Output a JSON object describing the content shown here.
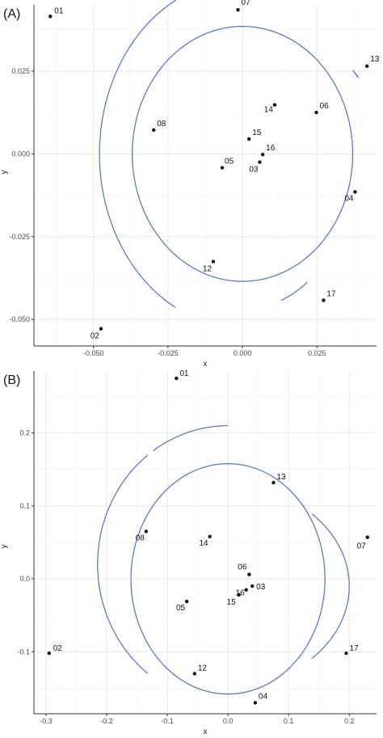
{
  "chart_data": [
    {
      "type": "scatter",
      "panel_label": "(A)",
      "xlabel": "x",
      "ylabel": "y",
      "xlim": [
        -0.07,
        0.045
      ],
      "ylim": [
        -0.058,
        0.045
      ],
      "xticks": [
        -0.05,
        -0.025,
        0.0,
        0.025
      ],
      "xtick_labels": [
        "-0.050",
        "-0.025",
        "0.000",
        "0.025"
      ],
      "yticks": [
        -0.05,
        -0.025,
        0.0,
        0.025
      ],
      "ytick_labels": [
        "-0.050",
        "-0.025",
        "0.000",
        "0.025"
      ],
      "grid": true,
      "points": [
        {
          "label": "01",
          "x": -0.0645,
          "y": 0.0415
        },
        {
          "label": "07",
          "x": -0.0015,
          "y": 0.0435
        },
        {
          "label": "13",
          "x": 0.0418,
          "y": 0.0265
        },
        {
          "label": "14",
          "x": 0.0108,
          "y": 0.0148
        },
        {
          "label": "06",
          "x": 0.0248,
          "y": 0.0125
        },
        {
          "label": "08",
          "x": -0.0298,
          "y": 0.0072
        },
        {
          "label": "15",
          "x": 0.0022,
          "y": 0.0045
        },
        {
          "label": "16",
          "x": 0.0068,
          "y": -0.0002
        },
        {
          "label": "05",
          "x": -0.0068,
          "y": -0.0042
        },
        {
          "label": "03",
          "x": 0.0058,
          "y": -0.0025
        },
        {
          "label": "04",
          "x": 0.0378,
          "y": -0.0115
        },
        {
          "label": "12",
          "x": -0.0098,
          "y": -0.0325
        },
        {
          "label": "17",
          "x": 0.0272,
          "y": -0.0442
        },
        {
          "label": "02",
          "x": -0.0475,
          "y": -0.0528
        }
      ]
    },
    {
      "type": "scatter",
      "panel_label": "(B)",
      "xlabel": "x",
      "ylabel": "y",
      "xlim": [
        -0.32,
        0.245
      ],
      "ylim": [
        -0.185,
        0.285
      ],
      "xticks": [
        -0.3,
        -0.2,
        -0.1,
        0.0,
        0.1,
        0.2
      ],
      "xtick_labels": [
        "-0.3",
        "-0.2",
        "-0.1",
        "0.0",
        "0.1",
        "0.2"
      ],
      "yticks": [
        -0.1,
        0.0,
        0.1,
        0.2
      ],
      "ytick_labels": [
        "-0.1",
        "0.0",
        "0.1",
        "0.2"
      ],
      "grid": true,
      "points": [
        {
          "label": "01",
          "x": -0.085,
          "y": 0.275
        },
        {
          "label": "13",
          "x": 0.075,
          "y": 0.132
        },
        {
          "label": "08",
          "x": -0.135,
          "y": 0.065
        },
        {
          "label": "14",
          "x": -0.03,
          "y": 0.058
        },
        {
          "label": "07",
          "x": 0.23,
          "y": 0.057
        },
        {
          "label": "06",
          "x": 0.035,
          "y": 0.006
        },
        {
          "label": "03",
          "x": 0.04,
          "y": -0.01
        },
        {
          "label": "16",
          "x": 0.03,
          "y": -0.015
        },
        {
          "label": "15",
          "x": 0.018,
          "y": -0.022
        },
        {
          "label": "05",
          "x": -0.068,
          "y": -0.031
        },
        {
          "label": "02",
          "x": -0.295,
          "y": -0.102
        },
        {
          "label": "17",
          "x": 0.195,
          "y": -0.102
        },
        {
          "label": "12",
          "x": -0.055,
          "y": -0.13
        },
        {
          "label": "04",
          "x": 0.045,
          "y": -0.17
        }
      ]
    }
  ]
}
